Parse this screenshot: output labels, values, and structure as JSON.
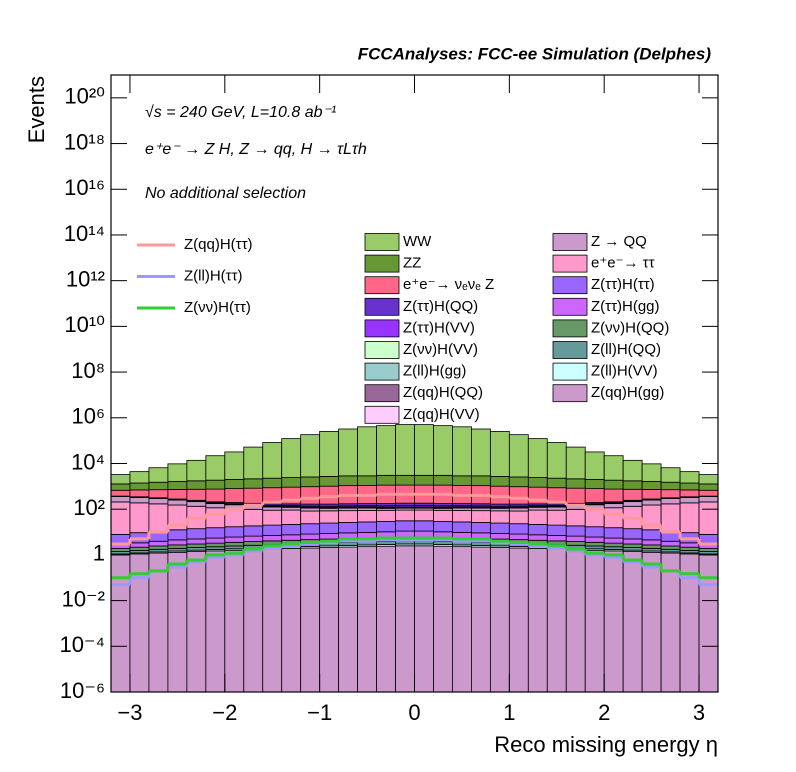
{
  "chart_data": {
    "type": "stacked_histogram",
    "title": "FCCAnalyses: FCC-ee Simulation (Delphes)",
    "annotations": [
      "√s = 240 GeV, L=10.8 ab⁻¹",
      "e⁺e⁻ → Z H, Z → qq, H → τLτh",
      "No additional selection"
    ],
    "xlabel": "Reco missing energy η",
    "ylabel": "Events",
    "log_y": true,
    "xlim": [
      -3.2,
      3.2
    ],
    "ylim": [
      1e-06,
      1e+21
    ],
    "xticks": [
      {
        "value": -3,
        "label": "−3"
      },
      {
        "value": -2,
        "label": "−2"
      },
      {
        "value": -1,
        "label": "−1"
      },
      0,
      1,
      2,
      3
    ],
    "yticks": [
      {
        "value": 1e-06,
        "label": "10⁻⁶"
      },
      {
        "value": 0.0001,
        "label": "10⁻⁴"
      },
      {
        "value": 0.01,
        "label": "10⁻²"
      },
      1,
      {
        "value": 100,
        "label": "10²"
      },
      {
        "value": 10000,
        "label": "10⁴"
      },
      {
        "value": 1000000,
        "label": "10⁶"
      },
      {
        "value": 100000000.0,
        "label": "10⁸"
      },
      {
        "value": 10000000000.0,
        "label": "10¹⁰"
      },
      {
        "value": 1000000000000.0,
        "label": "10¹²"
      },
      {
        "value": 100000000000000.0,
        "label": "10¹⁴"
      },
      {
        "value": 1e+16,
        "label": "10¹⁶"
      },
      {
        "value": 1e+18,
        "label": "10¹⁸"
      },
      {
        "value": 1e+20,
        "label": "10²⁰"
      }
    ],
    "bins": [
      -3.2,
      -3,
      -2.8,
      -2.6,
      -2.4,
      -2.2,
      -2,
      -1.8,
      -1.6,
      -1.4,
      -1.2,
      -1,
      -0.8,
      -0.6,
      -0.4,
      -0.2,
      0,
      0.2,
      0.4,
      0.6,
      0.8,
      1,
      1.2,
      1.4,
      1.6,
      1.8,
      2,
      2.2,
      2.4,
      2.6,
      2.8,
      3,
      3.2
    ],
    "series": [
      {
        "name": "WW",
        "color": "#99cc66",
        "values": [
          2000,
          3000,
          5000,
          8000,
          12000,
          20000,
          30000,
          50000,
          80000,
          120000,
          180000,
          250000,
          320000,
          400000,
          450000,
          500000,
          500000,
          450000,
          400000,
          320000,
          250000,
          180000,
          120000,
          80000,
          50000,
          30000,
          20000,
          12000,
          8000,
          5000,
          3000,
          2000
        ]
      },
      {
        "name": "ZZ",
        "color": "#669933",
        "values": [
          600,
          700,
          800,
          900,
          1000,
          1100,
          1200,
          1300,
          1400,
          1500,
          1600,
          1700,
          1800,
          1800,
          1900,
          1900,
          1900,
          1900,
          1800,
          1800,
          1700,
          1600,
          1500,
          1400,
          1300,
          1200,
          1100,
          1000,
          900,
          800,
          700,
          600
        ]
      },
      {
        "name": "e⁺e⁻→ νₑνₑ Z",
        "color": "#ff6688",
        "values": [
          300,
          350,
          400,
          450,
          500,
          550,
          600,
          650,
          700,
          750,
          800,
          850,
          900,
          900,
          950,
          950,
          950,
          950,
          900,
          900,
          850,
          800,
          750,
          700,
          650,
          600,
          550,
          500,
          450,
          400,
          350,
          300
        ]
      },
      {
        "name": "Z(ττ)H(QQ)",
        "color": "#6633cc",
        "values": [
          10,
          12,
          14,
          16,
          18,
          20,
          22,
          24,
          26,
          28,
          30,
          32,
          34,
          36,
          38,
          40,
          40,
          38,
          36,
          34,
          32,
          30,
          28,
          26,
          24,
          22,
          20,
          18,
          16,
          14,
          12,
          10
        ]
      },
      {
        "name": "Z(ττ)H(VV)",
        "color": "#9933ff",
        "values": [
          3,
          4,
          5,
          6,
          7,
          8,
          9,
          10,
          11,
          12,
          13,
          14,
          15,
          16,
          17,
          18,
          18,
          17,
          16,
          15,
          14,
          13,
          12,
          11,
          10,
          9,
          8,
          7,
          6,
          5,
          4,
          3
        ]
      },
      {
        "name": "Z(νν)H(VV)",
        "color": "#ccffcc",
        "values": [
          2,
          2,
          3,
          3,
          4,
          4,
          5,
          5,
          6,
          6,
          7,
          7,
          8,
          8,
          9,
          9,
          9,
          9,
          8,
          8,
          7,
          7,
          6,
          6,
          5,
          5,
          4,
          4,
          3,
          3,
          2,
          2
        ]
      },
      {
        "name": "Z(ll)H(gg)",
        "color": "#99cccc",
        "values": [
          0.1,
          0.1,
          0.1,
          0.1,
          0.05,
          0.5,
          0.2,
          0.3,
          0.5,
          0.5,
          0.6,
          0.6,
          0.7,
          0.7,
          0.8,
          0.8,
          0.8,
          0.8,
          0.7,
          0.7,
          0.6,
          0.6,
          0.5,
          0.5,
          0.3,
          0.2,
          0.5,
          0.05,
          0.1,
          0.1,
          0.1,
          0.1
        ]
      },
      {
        "name": "Z(qq)H(QQ)",
        "color": "#996699",
        "values": [
          0.3,
          0.4,
          0.5,
          0.6,
          0.8,
          1,
          1.2,
          1.4,
          1.6,
          1.8,
          2,
          2.2,
          2.4,
          2.6,
          2.8,
          3,
          3,
          2.8,
          2.6,
          2.4,
          2.2,
          2,
          1.8,
          1.6,
          1.4,
          1.2,
          1,
          0.8,
          0.6,
          0.5,
          0.4,
          0.3
        ]
      },
      {
        "name": "Z(qq)H(VV)",
        "color": "#ffccff",
        "values": [
          0.2,
          0.3,
          0.4,
          0.5,
          0.6,
          0.7,
          0.8,
          0.9,
          1,
          1.1,
          1.2,
          1.3,
          1.4,
          1.5,
          1.6,
          1.7,
          1.7,
          1.6,
          1.5,
          1.4,
          1.3,
          1.2,
          1.1,
          1,
          0.9,
          0.8,
          0.7,
          0.6,
          0.5,
          0.4,
          0.3,
          0.2
        ]
      },
      {
        "name": "Z → QQ",
        "color": "#cc99cc",
        "values": [
          150,
          140,
          120,
          100,
          80,
          60,
          50,
          40,
          35,
          30,
          30,
          25,
          25,
          25,
          20,
          20,
          20,
          20,
          25,
          25,
          25,
          30,
          30,
          35,
          40,
          50,
          60,
          80,
          100,
          120,
          140,
          150
        ]
      },
      {
        "name": "e⁺e⁻→ ττ",
        "color": "#ff99cc",
        "values": [
          200,
          180,
          160,
          140,
          120,
          100,
          90,
          80,
          70,
          70,
          60,
          60,
          60,
          60,
          60,
          60,
          60,
          60,
          60,
          60,
          60,
          60,
          70,
          70,
          80,
          90,
          100,
          120,
          140,
          160,
          180,
          200
        ]
      },
      {
        "name": "Z(ττ)H(ττ)",
        "color": "#9966ff",
        "values": [
          5,
          6,
          7,
          8,
          9,
          10,
          11,
          12,
          13,
          14,
          15,
          16,
          17,
          18,
          19,
          20,
          20,
          19,
          18,
          17,
          16,
          15,
          14,
          13,
          12,
          11,
          10,
          9,
          8,
          7,
          6,
          5
        ]
      },
      {
        "name": "Z(ττ)H(gg)",
        "color": "#cc66ff",
        "values": [
          1,
          1.2,
          1.5,
          1.8,
          2,
          2.2,
          2.5,
          2.8,
          3,
          3.2,
          3.5,
          3.8,
          4,
          4.2,
          4.5,
          5,
          5,
          4.5,
          4.2,
          4,
          3.8,
          3.5,
          3.2,
          3,
          2.8,
          2.5,
          2.2,
          2,
          1.8,
          1.5,
          1.2,
          1
        ]
      },
      {
        "name": "Z(νν)H(QQ)",
        "color": "#669966",
        "values": [
          0.5,
          0.6,
          0.7,
          0.8,
          0.9,
          1,
          1.1,
          1.2,
          1.3,
          1.4,
          1.5,
          1.6,
          1.7,
          1.8,
          1.9,
          2,
          2,
          1.9,
          1.8,
          1.7,
          1.6,
          1.5,
          1.4,
          1.3,
          1.2,
          1.1,
          1,
          0.9,
          0.8,
          0.7,
          0.6,
          0.5
        ]
      },
      {
        "name": "Z(ll)H(QQ)",
        "color": "#669999",
        "values": [
          0.3,
          0.35,
          0.4,
          0.45,
          0.5,
          0.55,
          0.6,
          0.65,
          0.7,
          0.75,
          0.8,
          0.85,
          0.9,
          0.95,
          1,
          1,
          1,
          1,
          0.95,
          0.9,
          0.85,
          0.8,
          0.75,
          0.7,
          0.65,
          0.6,
          0.55,
          0.5,
          0.45,
          0.4,
          0.35,
          0.3
        ]
      },
      {
        "name": "Z(ll)H(VV)",
        "color": "#ccffff",
        "values": [
          0.1,
          0.12,
          0.15,
          0.18,
          0.2,
          0.22,
          0.25,
          0.28,
          0.3,
          0.32,
          0.35,
          0.38,
          0.4,
          0.42,
          0.45,
          0.5,
          0.5,
          0.45,
          0.42,
          0.4,
          0.38,
          0.35,
          0.32,
          0.3,
          0.28,
          0.25,
          0.22,
          0.2,
          0.18,
          0.15,
          0.12,
          0.1
        ]
      },
      {
        "name": "Z(qq)H(gg)",
        "color": "#cc99cc",
        "values": [
          1,
          1.1,
          1.2,
          1.3,
          1.4,
          1.5,
          1.6,
          1.7,
          1.8,
          1.9,
          2,
          2.1,
          2.2,
          2.3,
          2.4,
          2.5,
          2.5,
          2.4,
          2.3,
          2.2,
          2.1,
          2,
          1.9,
          1.8,
          1.7,
          1.6,
          1.5,
          1.4,
          1.3,
          1.2,
          1.1,
          1
        ]
      }
    ],
    "overlay_series": [
      {
        "name": "Z(qq)H(ττ)",
        "color": "#ff9999",
        "values": [
          3,
          5,
          10,
          20,
          40,
          60,
          100,
          150,
          200,
          250,
          300,
          350,
          400,
          400,
          450,
          450,
          450,
          450,
          400,
          400,
          350,
          300,
          250,
          200,
          150,
          100,
          60,
          40,
          20,
          10,
          5,
          3
        ]
      },
      {
        "name": "Z(ll)H(ττ)",
        "color": "#9999ff",
        "values": [
          0.05,
          0.1,
          0.2,
          0.3,
          0.5,
          0.8,
          1,
          1.5,
          2,
          2.5,
          3,
          3.5,
          4,
          4,
          4.5,
          4.5,
          4.5,
          4.5,
          4,
          4,
          3.5,
          3,
          2.5,
          2,
          1.5,
          1,
          0.8,
          0.5,
          0.3,
          0.2,
          0.1,
          0.05
        ]
      },
      {
        "name": "Z(νν)H(ττ)",
        "color": "#33cc33",
        "values": [
          0.1,
          0.15,
          0.2,
          0.4,
          0.6,
          1,
          1.2,
          1.8,
          2.5,
          3,
          3.5,
          4,
          5,
          5,
          5.5,
          5.5,
          5.5,
          5.5,
          5,
          5,
          4,
          3.5,
          3,
          2.5,
          1.8,
          1.2,
          1,
          0.6,
          0.4,
          0.2,
          0.15,
          0.1
        ]
      }
    ]
  }
}
